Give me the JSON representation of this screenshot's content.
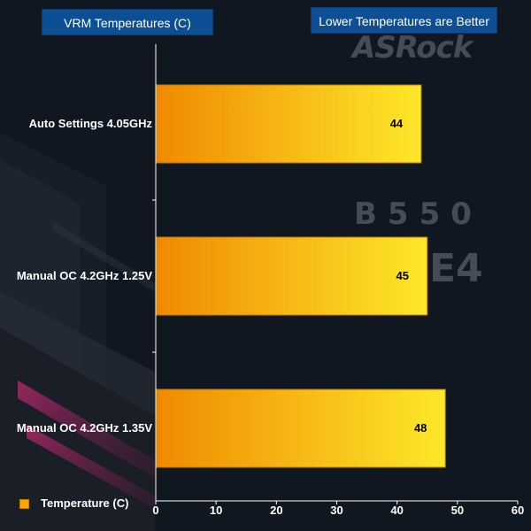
{
  "chart_data": {
    "type": "bar",
    "orientation": "horizontal",
    "title": "VRM Temperatures (C)",
    "subtitle": "Lower Temperatures are Better",
    "categories": [
      "Auto Settings 4.05GHz",
      "Manual OC 4.2GHz 1.25V",
      "Manual OC 4.2GHz 1.35V"
    ],
    "series": [
      {
        "name": "Temperature (C)",
        "values": [
          44,
          45,
          48
        ]
      }
    ],
    "xlim": [
      0,
      60
    ],
    "xticks": [
      0,
      10,
      20,
      30,
      40,
      50,
      60
    ],
    "grid": false,
    "legend_position": "bottom-left",
    "data_labels": true,
    "colors": {
      "bar_start": "#f08a00",
      "bar_end": "#fde82a",
      "bar_border": "#c77b00",
      "axis": "#ffffff"
    }
  },
  "watermark": {
    "brand": "ASRock",
    "model": "B550",
    "suffix": "E4"
  }
}
